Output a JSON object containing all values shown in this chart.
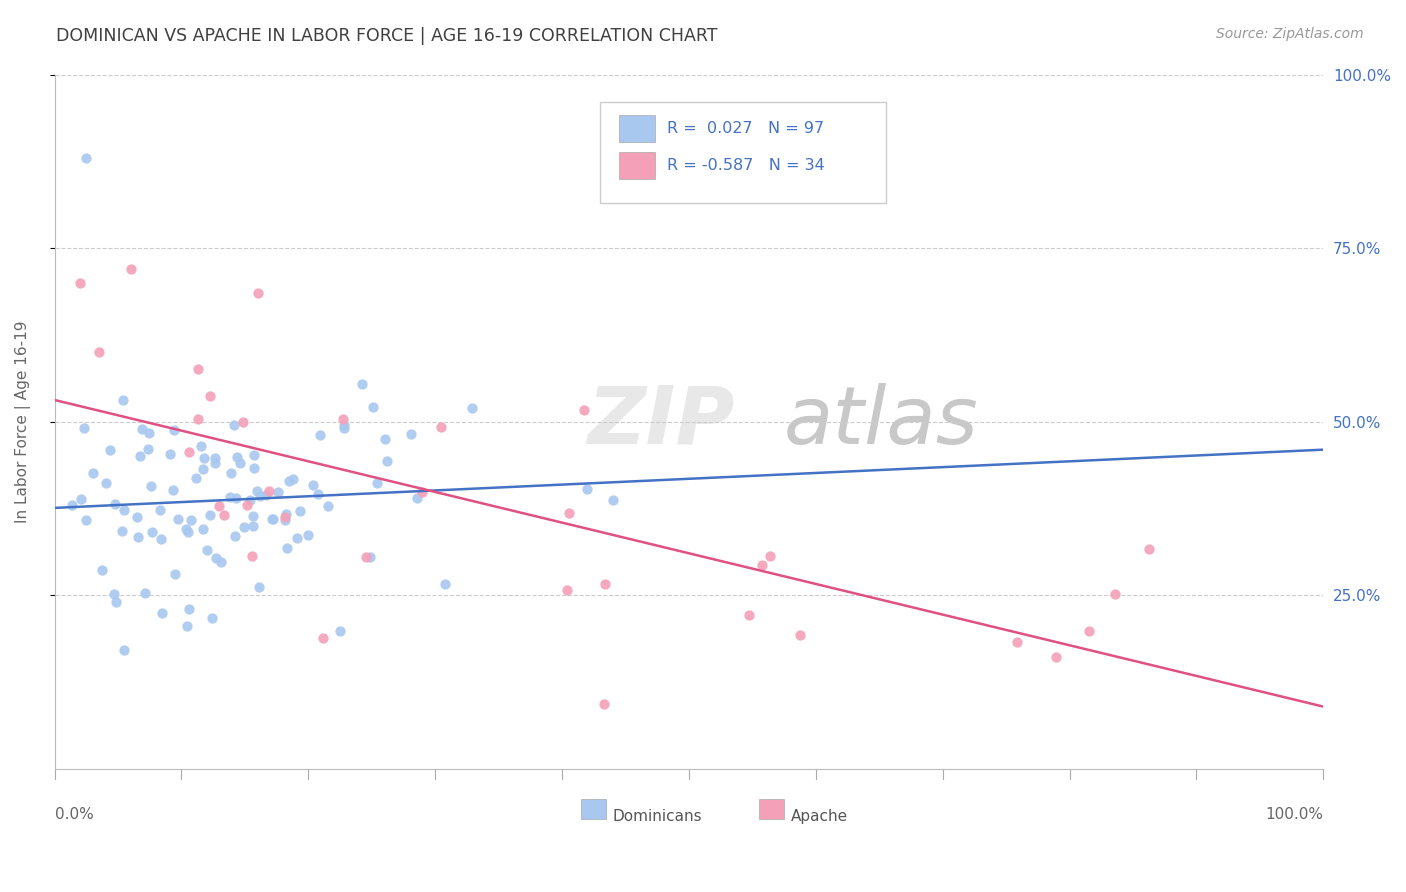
{
  "title": "DOMINICAN VS APACHE IN LABOR FORCE | AGE 16-19 CORRELATION CHART",
  "source": "Source: ZipAtlas.com",
  "ylabel": "In Labor Force | Age 16-19",
  "legend_label1": "Dominicans",
  "legend_label2": "Apache",
  "r1": 0.027,
  "n1": 97,
  "r2": -0.587,
  "n2": 34,
  "blue_color": "#a8c8f0",
  "pink_color": "#f4a0b8",
  "line_blue": "#4472c4",
  "line_pink": "#e05080",
  "title_color": "#404040",
  "axis_color": "#aaaaaa",
  "watermark_zip": "ZIP",
  "watermark_atlas": "atlas"
}
